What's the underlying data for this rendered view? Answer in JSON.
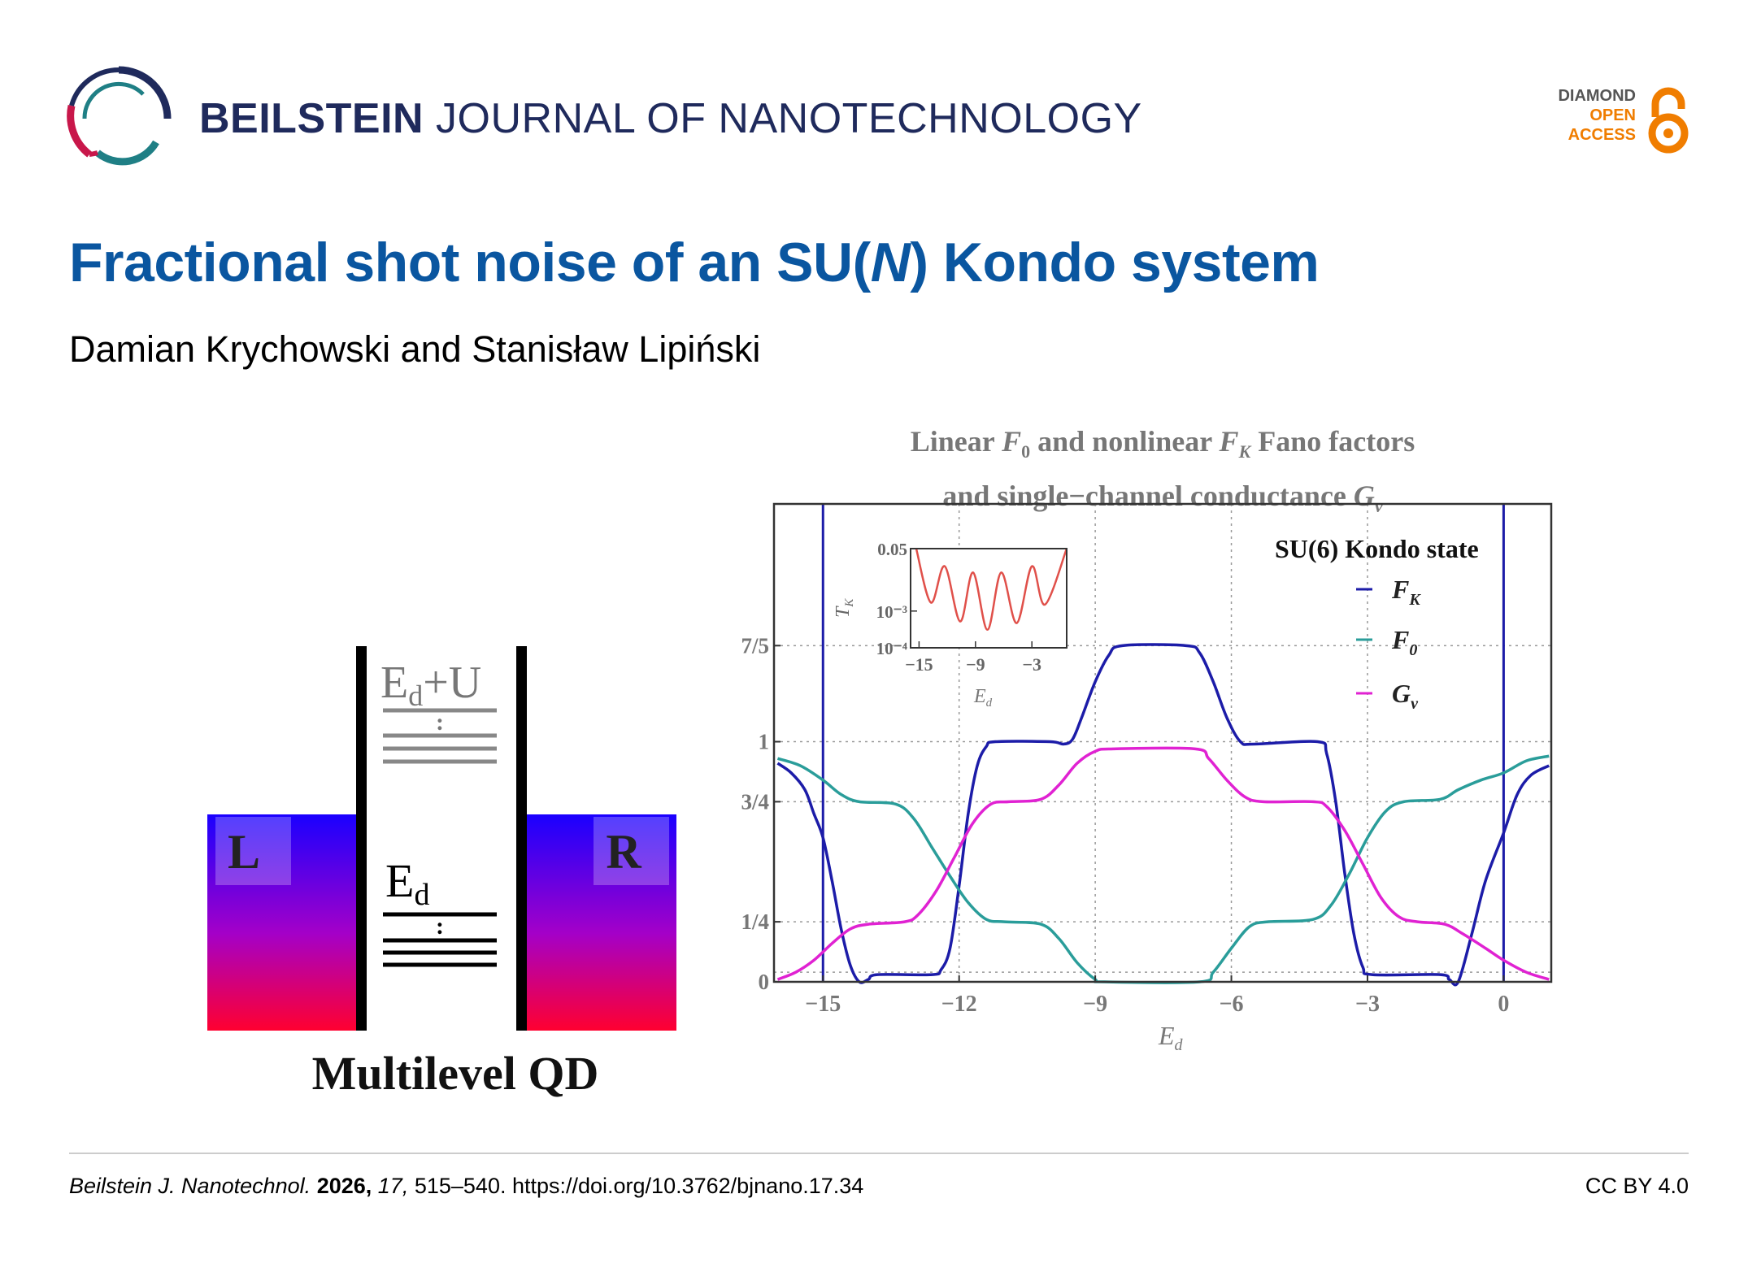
{
  "header": {
    "journal_bold": "BEILSTEIN",
    "journal_rest": " JOURNAL OF NANOTECHNOLOGY",
    "oa_badge": {
      "line1": "DIAMOND",
      "line2": "OPEN",
      "line3": "ACCESS",
      "icon": "open-access-lock-icon"
    }
  },
  "article": {
    "title_parts": [
      "Fractional shot noise of an SU(",
      "N",
      ") Kondo system"
    ],
    "authors": "Damian Krychowski and Stanisław Lipiński"
  },
  "diagram": {
    "left_label": "L",
    "right_label": "R",
    "upper_level": {
      "base": "E",
      "sub": "d",
      "rest": "+U"
    },
    "lower_level": {
      "base": "E",
      "sub": "d"
    },
    "dots": ":",
    "caption": "Multilevel QD"
  },
  "chart_data": {
    "type": "line",
    "title_line1": [
      "Linear ",
      "F",
      "0",
      " and nonlinear ",
      "F",
      "K",
      " Fano factors"
    ],
    "title_line2": [
      "and single−channel conductance ",
      "G",
      "ν"
    ],
    "xlabel": {
      "base": "E",
      "sub": "d"
    },
    "xlim": [
      -16.08,
      1.05
    ],
    "ylim": [
      0,
      1.99
    ],
    "xticks": [
      {
        "v": -15,
        "label": "−15"
      },
      {
        "v": -12,
        "label": "−12"
      },
      {
        "v": -9,
        "label": "−9"
      },
      {
        "v": -6,
        "label": "−6"
      },
      {
        "v": -3,
        "label": "−3"
      },
      {
        "v": 0,
        "label": "0"
      }
    ],
    "yticks": [
      {
        "v": 0,
        "label": "0"
      },
      {
        "v": 0.25,
        "label": "1/4"
      },
      {
        "v": 0.75,
        "label": "3/4"
      },
      {
        "v": 1,
        "label": "1"
      },
      {
        "v": 1.4,
        "label": "7/5"
      }
    ],
    "grid": true,
    "vertical_markers": [
      -15,
      0
    ],
    "legend": {
      "title": "SU(6) Kondo state",
      "position": "top-right"
    },
    "series": [
      {
        "name": "F_K",
        "label_base": "F",
        "label_sub": "K",
        "color": "#1c1ca8",
        "points": [
          [
            -16.0,
            0.91
          ],
          [
            -15.7,
            0.87
          ],
          [
            -15.4,
            0.8
          ],
          [
            -15.2,
            0.7
          ],
          [
            -15,
            0.6
          ],
          [
            -14.8,
            0.42
          ],
          [
            -14.6,
            0.22
          ],
          [
            -14.4,
            0.07
          ],
          [
            -14.2,
            0.0
          ],
          [
            -14.0,
            0.01
          ],
          [
            -13.8,
            0.03
          ],
          [
            -12.6,
            0.03
          ],
          [
            -12.4,
            0.05
          ],
          [
            -12.2,
            0.14
          ],
          [
            -12.0,
            0.4
          ],
          [
            -11.8,
            0.7
          ],
          [
            -11.6,
            0.9
          ],
          [
            -11.4,
            0.98
          ],
          [
            -11.2,
            1.0
          ],
          [
            -10.0,
            1.0
          ],
          [
            -9.7,
            0.99
          ],
          [
            -9.5,
            1.01
          ],
          [
            -9.3,
            1.1
          ],
          [
            -9.0,
            1.25
          ],
          [
            -8.7,
            1.36
          ],
          [
            -8.4,
            1.4
          ],
          [
            -7.0,
            1.4
          ],
          [
            -6.7,
            1.37
          ],
          [
            -6.4,
            1.25
          ],
          [
            -6.1,
            1.1
          ],
          [
            -5.8,
            1.0
          ],
          [
            -5.5,
            0.99
          ],
          [
            -4.1,
            1.0
          ],
          [
            -3.9,
            0.95
          ],
          [
            -3.7,
            0.75
          ],
          [
            -3.5,
            0.45
          ],
          [
            -3.3,
            0.2
          ],
          [
            -3.1,
            0.06
          ],
          [
            -2.9,
            0.03
          ],
          [
            -1.4,
            0.03
          ],
          [
            -1.2,
            0.01
          ],
          [
            -1.0,
            0.0
          ],
          [
            -0.7,
            0.2
          ],
          [
            -0.4,
            0.42
          ],
          [
            0,
            0.62
          ],
          [
            0.3,
            0.78
          ],
          [
            0.6,
            0.86
          ],
          [
            1.0,
            0.9
          ]
        ]
      },
      {
        "name": "F_0",
        "label_base": "F",
        "label_sub": "0",
        "color": "#2a9d9a",
        "points": [
          [
            -16.0,
            0.93
          ],
          [
            -15.5,
            0.9
          ],
          [
            -15,
            0.84
          ],
          [
            -14.6,
            0.78
          ],
          [
            -14.2,
            0.75
          ],
          [
            -13.4,
            0.74
          ],
          [
            -13.0,
            0.68
          ],
          [
            -12.6,
            0.56
          ],
          [
            -12.2,
            0.44
          ],
          [
            -11.8,
            0.33
          ],
          [
            -11.4,
            0.26
          ],
          [
            -11.0,
            0.25
          ],
          [
            -10.2,
            0.24
          ],
          [
            -9.8,
            0.18
          ],
          [
            -9.4,
            0.08
          ],
          [
            -9.0,
            0.01
          ],
          [
            -8.8,
            0.0
          ],
          [
            -6.7,
            0.0
          ],
          [
            -6.4,
            0.04
          ],
          [
            -6.0,
            0.14
          ],
          [
            -5.6,
            0.23
          ],
          [
            -5.2,
            0.25
          ],
          [
            -4.2,
            0.26
          ],
          [
            -3.8,
            0.32
          ],
          [
            -3.4,
            0.45
          ],
          [
            -3.0,
            0.6
          ],
          [
            -2.6,
            0.71
          ],
          [
            -2.2,
            0.75
          ],
          [
            -1.4,
            0.76
          ],
          [
            -1.0,
            0.8
          ],
          [
            -0.5,
            0.84
          ],
          [
            0,
            0.87
          ],
          [
            0.5,
            0.92
          ],
          [
            1.0,
            0.94
          ]
        ]
      },
      {
        "name": "G_ν",
        "label_base": "G",
        "label_sub": "ν",
        "color": "#e022d2",
        "points": [
          [
            -16.0,
            0.01
          ],
          [
            -15.6,
            0.04
          ],
          [
            -15.2,
            0.09
          ],
          [
            -14.8,
            0.16
          ],
          [
            -14.4,
            0.22
          ],
          [
            -14.0,
            0.24
          ],
          [
            -13.2,
            0.25
          ],
          [
            -12.9,
            0.28
          ],
          [
            -12.5,
            0.38
          ],
          [
            -12.1,
            0.52
          ],
          [
            -11.7,
            0.66
          ],
          [
            -11.3,
            0.74
          ],
          [
            -10.9,
            0.75
          ],
          [
            -10.2,
            0.76
          ],
          [
            -9.8,
            0.82
          ],
          [
            -9.4,
            0.91
          ],
          [
            -9.0,
            0.96
          ],
          [
            -8.6,
            0.97
          ],
          [
            -6.8,
            0.97
          ],
          [
            -6.5,
            0.93
          ],
          [
            -6.1,
            0.84
          ],
          [
            -5.7,
            0.77
          ],
          [
            -5.3,
            0.75
          ],
          [
            -4.2,
            0.75
          ],
          [
            -3.9,
            0.73
          ],
          [
            -3.5,
            0.63
          ],
          [
            -3.1,
            0.49
          ],
          [
            -2.7,
            0.35
          ],
          [
            -2.3,
            0.27
          ],
          [
            -1.9,
            0.25
          ],
          [
            -1.3,
            0.24
          ],
          [
            -0.9,
            0.2
          ],
          [
            -0.4,
            0.14
          ],
          [
            0,
            0.09
          ],
          [
            0.5,
            0.04
          ],
          [
            1.0,
            0.01
          ]
        ]
      }
    ],
    "inset": {
      "type": "line",
      "ylabel": {
        "base": "T",
        "sub": "K"
      },
      "xlabel": {
        "base": "E",
        "sub": "d"
      },
      "yscale": "log",
      "xlim": [
        -15.9,
        0.7
      ],
      "ylim": [
        0.0001,
        0.05
      ],
      "xticks": [
        {
          "v": -15,
          "label": "−15"
        },
        {
          "v": -9,
          "label": "−9"
        },
        {
          "v": -3,
          "label": "−3"
        }
      ],
      "yticks": [
        {
          "v": 0.05,
          "label": "0.05"
        },
        {
          "v": 0.001,
          "label": "10⁻³"
        },
        {
          "v": 0.0001,
          "label": "10⁻⁴"
        }
      ],
      "color": "#e0504a",
      "points": [
        [
          -15.3,
          0.05
        ],
        [
          -13.74,
          0.0017
        ],
        [
          -12.27,
          0.0166
        ],
        [
          -10.63,
          0.00052
        ],
        [
          -9.26,
          0.0112
        ],
        [
          -7.73,
          0.00031
        ],
        [
          -6.26,
          0.0112
        ],
        [
          -4.62,
          0.00047
        ],
        [
          -3.0,
          0.0166
        ],
        [
          -1.61,
          0.0015
        ],
        [
          0.7,
          0.05
        ]
      ]
    }
  },
  "footer": {
    "journal_abbrev": "Beilstein J. Nanotechnol.",
    "year": "2026,",
    "volume": "17,",
    "pages_doi": "515–540. https://doi.org/10.3762/bjnano.17.34",
    "license": "CC BY 4.0"
  }
}
